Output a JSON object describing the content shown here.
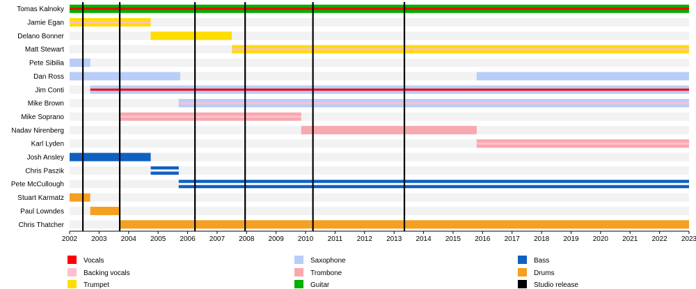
{
  "chart_data": {
    "type": "timeline",
    "title": "",
    "x_range": [
      2002,
      2023
    ],
    "ticks": [
      2002,
      2003,
      2004,
      2005,
      2006,
      2007,
      2008,
      2009,
      2010,
      2011,
      2012,
      2013,
      2014,
      2015,
      2016,
      2017,
      2018,
      2019,
      2020,
      2021,
      2022,
      2023
    ],
    "grid": false,
    "roles": {
      "vocals": {
        "label": "Vocals",
        "color": "#ff0000"
      },
      "backing": {
        "label": "Backing vocals",
        "color": "#ffc0cb"
      },
      "trumpet": {
        "label": "Trumpet",
        "color": "#ffdd00"
      },
      "sax": {
        "label": "Saxophone",
        "color": "#b8cdf8"
      },
      "trombone": {
        "label": "Trombone",
        "color": "#f8a8b0"
      },
      "guitar": {
        "label": "Guitar",
        "color": "#00b000"
      },
      "bass": {
        "label": "Bass",
        "color": "#1060c0"
      },
      "drums": {
        "label": "Drums",
        "color": "#f5a020"
      },
      "studio": {
        "label": "Studio release",
        "color": "#000000"
      }
    },
    "legend_columns": [
      [
        "vocals",
        "backing",
        "trumpet"
      ],
      [
        "sax",
        "trombone",
        "guitar"
      ],
      [
        "bass",
        "drums",
        "studio"
      ]
    ],
    "members": [
      {
        "name": "Tomas Kalnoky",
        "bars": [
          {
            "role": "guitar",
            "start": 2002,
            "end": 2023,
            "accents": [
              "vocals"
            ]
          }
        ]
      },
      {
        "name": "Jamie Egan",
        "bars": [
          {
            "role": "trumpet",
            "start": 2002,
            "end": 2004.75,
            "accents": [
              "backing"
            ]
          }
        ]
      },
      {
        "name": "Delano Bonner",
        "bars": [
          {
            "role": "trumpet",
            "start": 2004.75,
            "end": 2007.5
          }
        ]
      },
      {
        "name": "Matt Stewart",
        "bars": [
          {
            "role": "trumpet",
            "start": 2007.5,
            "end": 2023,
            "accents": [
              "backing"
            ]
          }
        ]
      },
      {
        "name": "Pete Sibilia",
        "bars": [
          {
            "role": "sax",
            "start": 2002,
            "end": 2002.7
          }
        ]
      },
      {
        "name": "Dan Ross",
        "bars": [
          {
            "role": "sax",
            "start": 2002,
            "end": 2005.75
          },
          {
            "role": "sax",
            "start": 2015.8,
            "end": 2023
          }
        ]
      },
      {
        "name": "Jim Conti",
        "bars": [
          {
            "role": "sax",
            "start": 2002.7,
            "end": 2023,
            "accents": [
              "vocals"
            ]
          }
        ]
      },
      {
        "name": "Mike Brown",
        "bars": [
          {
            "role": "sax",
            "start": 2005.7,
            "end": 2023,
            "accents": [
              "backing"
            ]
          }
        ]
      },
      {
        "name": "Mike Soprano",
        "bars": [
          {
            "role": "trombone",
            "start": 2003.7,
            "end": 2009.85,
            "accents": [
              "backing"
            ]
          }
        ]
      },
      {
        "name": "Nadav Nirenberg",
        "bars": [
          {
            "role": "trombone",
            "start": 2009.85,
            "end": 2015.8
          }
        ]
      },
      {
        "name": "Karl Lyden",
        "bars": [
          {
            "role": "trombone",
            "start": 2015.8,
            "end": 2023,
            "accents": [
              "backing"
            ]
          }
        ]
      },
      {
        "name": "Josh Ansley",
        "bars": [
          {
            "role": "bass",
            "start": 2002,
            "end": 2004.75
          }
        ]
      },
      {
        "name": "Chris Paszik",
        "bars": [
          {
            "role": "bass",
            "start": 2004.75,
            "end": 2005.7,
            "accents": [
              "white"
            ]
          }
        ]
      },
      {
        "name": "Pete McCullough",
        "bars": [
          {
            "role": "bass",
            "start": 2005.7,
            "end": 2023,
            "accents": [
              "white"
            ]
          }
        ]
      },
      {
        "name": "Stuart Karmatz",
        "bars": [
          {
            "role": "drums",
            "start": 2002,
            "end": 2002.7
          }
        ]
      },
      {
        "name": "Paul Lowndes",
        "bars": [
          {
            "role": "drums",
            "start": 2002.7,
            "end": 2003.7
          }
        ]
      },
      {
        "name": "Chris Thatcher",
        "bars": [
          {
            "role": "drums",
            "start": 2003.7,
            "end": 2023
          }
        ]
      }
    ],
    "studio_releases": [
      2002.45,
      2003.7,
      2006.25,
      2007.95,
      2010.25,
      2013.35
    ]
  }
}
